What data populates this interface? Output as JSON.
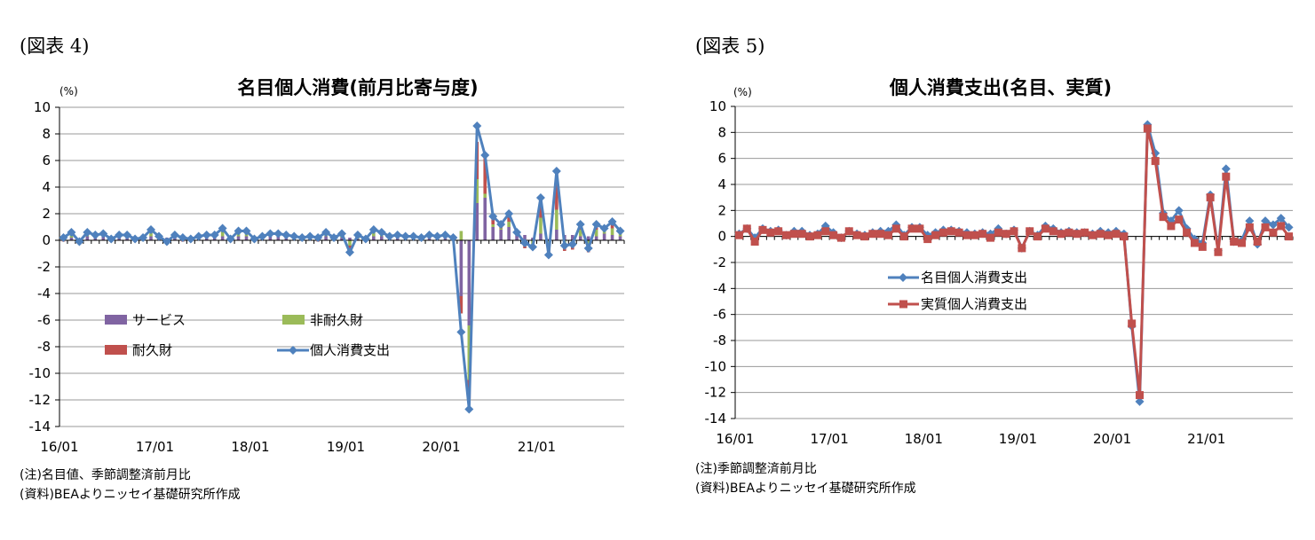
{
  "chart_data": [
    {
      "label": "(図表 4)",
      "type": "bar+line",
      "title": "名目個人消費(前月比寄与度)",
      "unit": "(%)",
      "ylim": [
        -14,
        10
      ],
      "ytick_values": [
        10,
        8,
        6,
        4,
        2,
        0,
        -2,
        -4,
        -6,
        -8,
        -10,
        -12,
        -14
      ],
      "yticks": [
        "10",
        "8",
        "6",
        "4",
        "2",
        "0",
        "-2",
        "-4",
        "-6",
        "-8",
        "-10",
        "-12",
        "-14"
      ],
      "xticks": [
        "16/01",
        "17/01",
        "18/01",
        "19/01",
        "20/01",
        "21/01"
      ],
      "xtick_index": [
        0,
        12,
        24,
        36,
        48,
        60
      ],
      "n_points": 71,
      "grid": true,
      "legend": "center-left",
      "stacked_bars": [
        {
          "name": "サービス",
          "color": "#8064a2",
          "values": [
            0.2,
            0.2,
            0,
            0.3,
            0.2,
            0.3,
            0.2,
            0.2,
            0.3,
            0.2,
            0.2,
            0.3,
            0.2,
            0.2,
            0.2,
            0.2,
            0.2,
            0.2,
            0.2,
            0.2,
            0.3,
            0.2,
            0.3,
            0.3,
            0.2,
            0.2,
            0.3,
            0.3,
            0.3,
            0.2,
            0.2,
            0.2,
            0.2,
            0.3,
            0.2,
            0.2,
            0.2,
            0.1,
            0.2,
            0.3,
            0.3,
            0.2,
            0.2,
            0.2,
            0.2,
            0.2,
            0.2,
            0.2,
            0.2,
            0.2,
            -4.2,
            -6.4,
            2.8,
            3.2,
            1,
            0.8,
            1,
            0.5,
            0.4,
            0.2,
            0.5,
            0.1,
            0.8,
            0.4,
            0.4,
            0.3,
            0.3,
            0.3,
            0.5,
            0.4,
            0.3
          ]
        },
        {
          "name": "非耐久財",
          "color": "#9bbb59",
          "values": [
            0.1,
            0.2,
            0.1,
            0.2,
            0.1,
            0.1,
            0,
            0.1,
            0.1,
            0,
            0,
            0.3,
            0.1,
            -0.2,
            0.1,
            0.1,
            -0.1,
            0,
            0.1,
            0.1,
            0.4,
            0,
            0.2,
            0.3,
            -0.1,
            0.1,
            0.1,
            0.1,
            0.1,
            0.1,
            0,
            0.1,
            0.1,
            0.2,
            0,
            0.2,
            -0.4,
            0.2,
            0,
            0.3,
            0.2,
            0.1,
            0.1,
            0.1,
            0.1,
            0,
            0.1,
            0.1,
            0.1,
            0.2,
            0.7,
            -4.1,
            1.8,
            0.3,
            0.2,
            0.1,
            0.4,
            0,
            -0.4,
            -0.4,
            1.2,
            -0.7,
            1.5,
            -0.3,
            -0.4,
            0.5,
            -0.7,
            0.5,
            0.2,
            0.5,
            0.2
          ]
        },
        {
          "name": "耐久財",
          "color": "#c0504d",
          "values": [
            -0.1,
            0.2,
            -0.2,
            0.1,
            0.1,
            0.1,
            -0.1,
            0.1,
            0,
            -0.1,
            0,
            0.2,
            0,
            -0.1,
            0.1,
            -0.1,
            0,
            0.1,
            0.1,
            0.1,
            0.2,
            -0.1,
            0.2,
            0.1,
            0,
            0,
            0.1,
            0.1,
            0,
            0,
            0,
            0,
            -0.1,
            0.1,
            0,
            0.1,
            -0.6,
            0.1,
            -0.1,
            0.2,
            0.1,
            0,
            0.1,
            0,
            0,
            0,
            0.1,
            0,
            0.1,
            0,
            -1.3,
            -1.4,
            2.8,
            2.7,
            0.6,
            0.3,
            0.6,
            0.1,
            -0.2,
            -0.3,
            1.5,
            -0.5,
            2.9,
            -0.5,
            -0.3,
            0.4,
            -0.2,
            0.4,
            0.2,
            0.5,
            0.2
          ]
        }
      ],
      "line_series": [
        {
          "name": "個人消費支出",
          "color": "#4f81bd",
          "values": [
            0.2,
            0.6,
            -0.1,
            0.6,
            0.4,
            0.5,
            0.1,
            0.4,
            0.4,
            0.1,
            0.2,
            0.8,
            0.3,
            -0.1,
            0.4,
            0.2,
            0.1,
            0.3,
            0.4,
            0.4,
            0.9,
            0.1,
            0.7,
            0.7,
            0.1,
            0.3,
            0.5,
            0.5,
            0.4,
            0.3,
            0.2,
            0.3,
            0.2,
            0.6,
            0.2,
            0.5,
            -0.9,
            0.4,
            0.1,
            0.8,
            0.6,
            0.3,
            0.4,
            0.3,
            0.3,
            0.2,
            0.4,
            0.3,
            0.4,
            0.2,
            -6.9,
            -12.7,
            8.6,
            6.4,
            1.8,
            1.2,
            2,
            0.6,
            -0.2,
            -0.5,
            3.2,
            -1.1,
            5.2,
            -0.4,
            -0.3,
            1.2,
            -0.6,
            1.2,
            0.9,
            1.4,
            0.7
          ]
        }
      ]
    },
    {
      "label": "(図表 5)",
      "type": "line",
      "title": "個人消費支出(名目、実質)",
      "unit": "(%)",
      "ylim": [
        -14,
        10
      ],
      "ytick_values": [
        10,
        8,
        6,
        4,
        2,
        0,
        -2,
        -4,
        -6,
        -8,
        -10,
        -12,
        -14
      ],
      "yticks": [
        "10",
        "8",
        "6",
        "4",
        "2",
        "0",
        "-2",
        "-4",
        "-6",
        "-8",
        "-10",
        "-12",
        "-14"
      ],
      "xticks": [
        "16/01",
        "17/01",
        "18/01",
        "19/01",
        "20/01",
        "21/01"
      ],
      "xtick_index": [
        0,
        12,
        24,
        36,
        48,
        60
      ],
      "n_points": 71,
      "grid": true,
      "legend": "center",
      "series": [
        {
          "name": "名目個人消費支出",
          "color": "#4f81bd",
          "marker": "diamond",
          "values": [
            0.2,
            0.6,
            -0.1,
            0.6,
            0.4,
            0.5,
            0.1,
            0.4,
            0.4,
            0.1,
            0.2,
            0.8,
            0.3,
            -0.1,
            0.4,
            0.2,
            0.1,
            0.3,
            0.4,
            0.4,
            0.9,
            0.1,
            0.7,
            0.7,
            0.1,
            0.3,
            0.5,
            0.5,
            0.4,
            0.3,
            0.2,
            0.3,
            0.2,
            0.6,
            0.2,
            0.5,
            -0.9,
            0.4,
            0.1,
            0.8,
            0.6,
            0.3,
            0.4,
            0.3,
            0.3,
            0.2,
            0.4,
            0.3,
            0.4,
            0.2,
            -6.9,
            -12.7,
            8.6,
            6.4,
            1.8,
            1.2,
            2,
            0.6,
            -0.2,
            -0.5,
            3.2,
            -1.1,
            5.2,
            -0.4,
            -0.3,
            1.2,
            -0.6,
            1.2,
            0.9,
            1.4,
            0.7
          ]
        },
        {
          "name": "実質個人消費支出",
          "color": "#c0504d",
          "marker": "square",
          "values": [
            0.1,
            0.6,
            -0.4,
            0.5,
            0.3,
            0.4,
            0.1,
            0.2,
            0.2,
            0,
            0.1,
            0.4,
            0.1,
            -0.1,
            0.4,
            0.1,
            0,
            0.2,
            0.2,
            0.1,
            0.6,
            0,
            0.6,
            0.6,
            -0.2,
            0.1,
            0.3,
            0.4,
            0.3,
            0.1,
            0.1,
            0.2,
            -0.1,
            0.3,
            0.2,
            0.4,
            -0.9,
            0.4,
            0,
            0.6,
            0.4,
            0.2,
            0.3,
            0.2,
            0.3,
            0.1,
            0.2,
            0.1,
            0.2,
            0,
            -6.7,
            -12.2,
            8.3,
            5.8,
            1.5,
            0.8,
            1.3,
            0.3,
            -0.5,
            -0.8,
            3,
            -1.2,
            4.6,
            -0.4,
            -0.5,
            0.7,
            -0.4,
            0.7,
            0.3,
            0.8,
            0
          ]
        }
      ]
    }
  ],
  "notes_left": [
    "(注)名目値、季節調整済前月比",
    "(資料)BEAよりニッセイ基礎研究所作成"
  ],
  "notes_right": [
    "(注)季節調整済前月比",
    "(資料)BEAよりニッセイ基礎研究所作成"
  ]
}
